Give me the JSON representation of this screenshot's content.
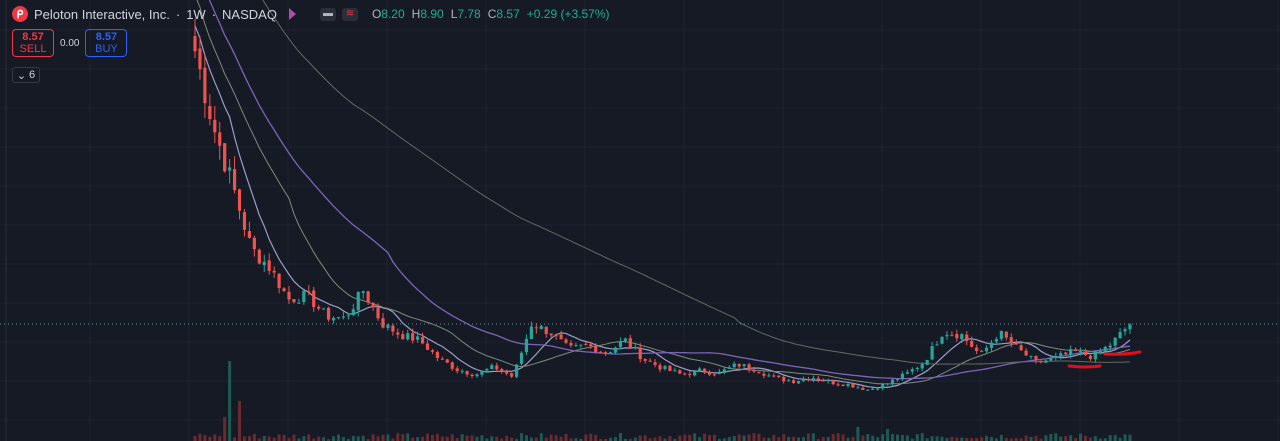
{
  "symbol": {
    "name": "Peloton Interactive, Inc.",
    "separator": "·",
    "interval": "1W",
    "dot": "·",
    "exchange": "NASDAQ",
    "logo_icon": "peloton-logo-icon",
    "flag_icon": "flag-icon"
  },
  "ohlc": {
    "o_label": "O",
    "o": "8.20",
    "h_label": "H",
    "h": "8.90",
    "l_label": "L",
    "l": "7.78",
    "c_label": "C",
    "c": "8.57",
    "change": "+0.29 (+3.57%)"
  },
  "trade": {
    "sell_price": "8.57",
    "sell_label": "SELL",
    "spread": "0.00",
    "buy_price": "8.57",
    "buy_label": "BUY"
  },
  "indicators_toggle": {
    "count": "6",
    "icon": "chevron-down-icon"
  },
  "colors": {
    "background": "#161a25",
    "up": "#26a69a",
    "down": "#ef5350",
    "ma_fast": "#9a9ec8",
    "ma_mid": "#7b8d7c",
    "ma_slow": "#7a65b8",
    "ma_long": "#5f6b63",
    "price_line": "#5d8b9b",
    "annotation": "#e0101a"
  },
  "chart_data": {
    "type": "candlestick",
    "interval": "1W",
    "last_price": 8.57,
    "grid": true,
    "series": [
      {
        "name": "price",
        "kind": "candles",
        "close": [
          30.0,
          24.0,
          19.5,
          14.5,
          13.0,
          10.5,
          10.8,
          9.2,
          9.0,
          11.2,
          8.6,
          7.7,
          7.3,
          5.9,
          5.0,
          4.6,
          5.2,
          4.4,
          8.6,
          7.9,
          6.6,
          6.9,
          6.3,
          7.3,
          5.8,
          5.1,
          4.6,
          4.9,
          4.7,
          5.4,
          5.0,
          4.3,
          4.1,
          4.4,
          4.0,
          3.8,
          3.4,
          3.9,
          4.6,
          5.6,
          8.0,
          7.7,
          6.1,
          7.9,
          6.6,
          5.5,
          5.9,
          6.4,
          6.0,
          7.0,
          8.57
        ]
      },
      {
        "name": "MA fast",
        "kind": "line"
      },
      {
        "name": "MA mid",
        "kind": "line"
      },
      {
        "name": "MA slow",
        "kind": "line"
      },
      {
        "name": "MA long",
        "kind": "line"
      }
    ],
    "volume": {
      "kind": "bars"
    }
  }
}
